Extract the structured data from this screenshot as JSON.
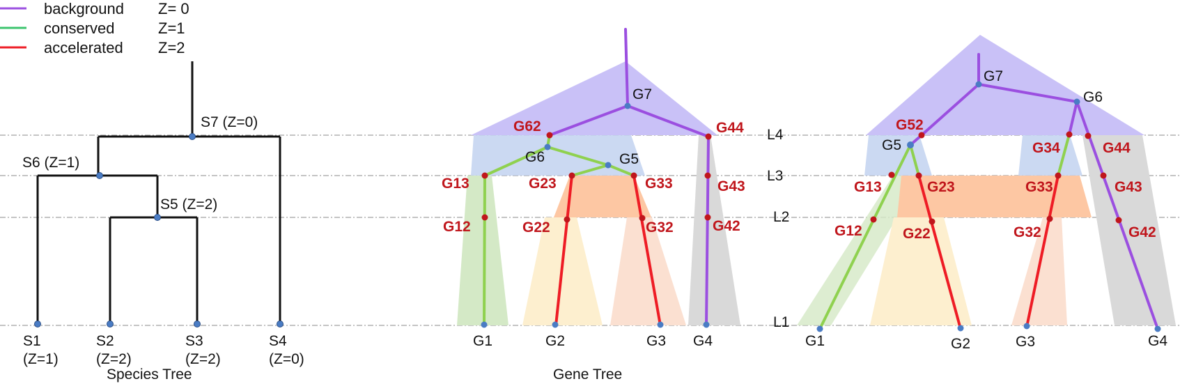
{
  "colors": {
    "background": "#9b4fe0",
    "conserved": "#8fd14f",
    "accelerated": "#ee1c25",
    "species_line": "#111111",
    "node_blue": "#4a7cc4",
    "node_red": "#c0161c",
    "label_red": "#c0161c",
    "shade_purple": "#c9c1f7",
    "shade_blue": "#c2d2f0",
    "shade_green": "#d4e9c6",
    "shade_orange": "#fdc7a3",
    "shade_yellow": "#fdefcf",
    "shade_peach": "#fbe0d1",
    "shade_gray": "#d9d9d9"
  },
  "legend": [
    {
      "name": "background",
      "z": "Z= 0",
      "color_key": "background"
    },
    {
      "name": "conserved",
      "z": "Z=1",
      "color_key": "conserved"
    },
    {
      "name": "accelerated",
      "z": "Z=2",
      "color_key": "accelerated"
    }
  ],
  "levels": [
    "L4",
    "L3",
    "L2",
    "L1"
  ],
  "species_tree": {
    "caption": "Species Tree",
    "internal": [
      "S7 (Z=0)",
      "S6 (Z=1)",
      "S5 (Z=2)"
    ],
    "leaves": [
      {
        "name": "S1",
        "z": "(Z=1)"
      },
      {
        "name": "S2",
        "z": "(Z=2)"
      },
      {
        "name": "S3",
        "z": "(Z=2)"
      },
      {
        "name": "S4",
        "z": "(Z=0)"
      }
    ]
  },
  "gene_tree_1": {
    "caption": "Gene Tree",
    "black_labels": [
      "G7",
      "G6",
      "G5"
    ],
    "red_labels": [
      "G62",
      "G44",
      "G13",
      "G23",
      "G33",
      "G43",
      "G12",
      "G22",
      "G32",
      "G42"
    ],
    "leaves": [
      "G1",
      "G2",
      "G3",
      "G4"
    ]
  },
  "gene_tree_2": {
    "black_labels": [
      "G7",
      "G6",
      "G5"
    ],
    "red_labels": [
      "G52",
      "G34",
      "G44",
      "G13",
      "G23",
      "G33",
      "G43",
      "G12",
      "G22",
      "G32",
      "G42"
    ],
    "leaves": [
      "G1",
      "G2",
      "G3",
      "G4"
    ]
  }
}
